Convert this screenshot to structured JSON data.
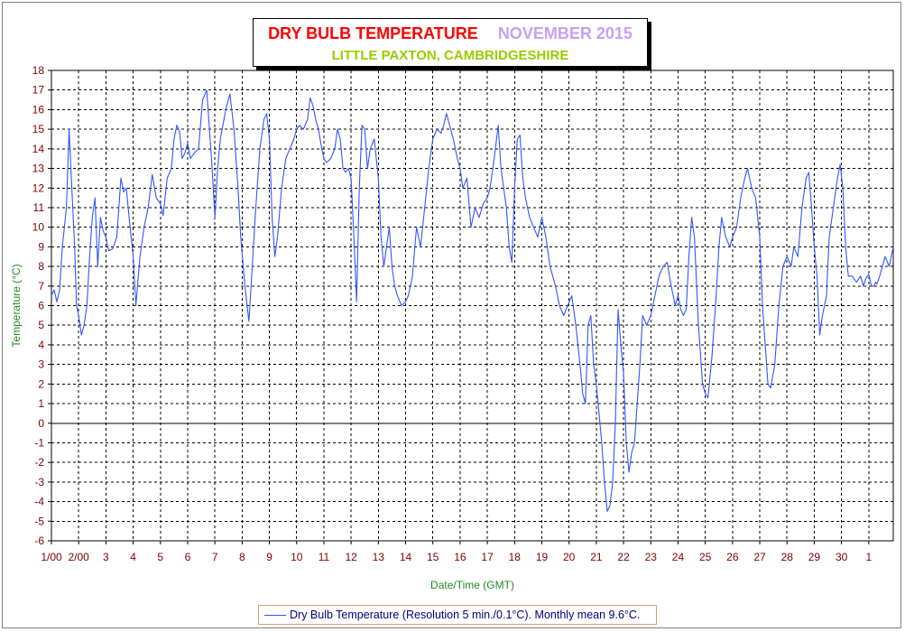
{
  "chart_data": {
    "type": "line",
    "title": "DRY BULB TEMPERATURE",
    "title_month": "NOVEMBER 2015",
    "subtitle": "LITTLE PAXTON, CAMBRIDGESHIRE",
    "xlabel": "Date/Time (GMT)",
    "ylabel": "Temperature (°C)",
    "ylim": [
      -6,
      18
    ],
    "xlim": [
      1,
      31.9
    ],
    "yticks": [
      "18",
      "17",
      "16",
      "15",
      "14",
      "13",
      "12",
      "11",
      "10",
      "9",
      "8",
      "7",
      "6",
      "5",
      "4",
      "3",
      "2",
      "1",
      "0",
      "-1",
      "-2",
      "-3",
      "-4",
      "-5",
      "-6"
    ],
    "xticks": [
      {
        "x": 1.0,
        "label": "1/00"
      },
      {
        "x": 2.0,
        "label": "2/00"
      },
      {
        "x": 3,
        "label": "3"
      },
      {
        "x": 4,
        "label": "4"
      },
      {
        "x": 5,
        "label": "5"
      },
      {
        "x": 6,
        "label": "6"
      },
      {
        "x": 7,
        "label": "7"
      },
      {
        "x": 8,
        "label": "8"
      },
      {
        "x": 9,
        "label": "9"
      },
      {
        "x": 10,
        "label": "10"
      },
      {
        "x": 11,
        "label": "11"
      },
      {
        "x": 12,
        "label": "12"
      },
      {
        "x": 13,
        "label": "13"
      },
      {
        "x": 14,
        "label": "14"
      },
      {
        "x": 15,
        "label": "15"
      },
      {
        "x": 16,
        "label": "16"
      },
      {
        "x": 17,
        "label": "17"
      },
      {
        "x": 18,
        "label": "18"
      },
      {
        "x": 19,
        "label": "19"
      },
      {
        "x": 20,
        "label": "20"
      },
      {
        "x": 21,
        "label": "21"
      },
      {
        "x": 22,
        "label": "22"
      },
      {
        "x": 23,
        "label": "23"
      },
      {
        "x": 24,
        "label": "24"
      },
      {
        "x": 25,
        "label": "25"
      },
      {
        "x": 26,
        "label": "26"
      },
      {
        "x": 27,
        "label": "27"
      },
      {
        "x": 28,
        "label": "28"
      },
      {
        "x": 29,
        "label": "29"
      },
      {
        "x": 30,
        "label": "30"
      },
      {
        "x": 31,
        "label": "1"
      }
    ],
    "grid": true,
    "legend_position": "bottom-center",
    "series": [
      {
        "name": "Dry Bulb Temperature (Resolution 5 min./0.1°C). Monthly mean 9.6°C.",
        "color": "#3355ff",
        "points": [
          [
            1.0,
            6.5
          ],
          [
            1.1,
            6.8
          ],
          [
            1.2,
            6.2
          ],
          [
            1.3,
            6.8
          ],
          [
            1.4,
            9.0
          ],
          [
            1.55,
            11.0
          ],
          [
            1.65,
            15.0
          ],
          [
            1.75,
            12.0
          ],
          [
            1.85,
            9.0
          ],
          [
            1.92,
            6.0
          ],
          [
            2.0,
            5.5
          ],
          [
            2.1,
            4.5
          ],
          [
            2.2,
            5.0
          ],
          [
            2.3,
            6.0
          ],
          [
            2.4,
            8.5
          ],
          [
            2.5,
            10.5
          ],
          [
            2.6,
            11.5
          ],
          [
            2.7,
            8.0
          ],
          [
            2.8,
            10.5
          ],
          [
            2.9,
            9.8
          ],
          [
            3.0,
            9.5
          ],
          [
            3.1,
            8.8
          ],
          [
            3.25,
            8.9
          ],
          [
            3.4,
            9.5
          ],
          [
            3.55,
            12.5
          ],
          [
            3.65,
            11.8
          ],
          [
            3.75,
            12.0
          ],
          [
            3.85,
            10.5
          ],
          [
            4.0,
            8.5
          ],
          [
            4.1,
            6.0
          ],
          [
            4.25,
            8.5
          ],
          [
            4.4,
            10.0
          ],
          [
            4.55,
            11.0
          ],
          [
            4.7,
            12.7
          ],
          [
            4.85,
            11.5
          ],
          [
            5.0,
            11.2
          ],
          [
            5.1,
            10.6
          ],
          [
            5.25,
            12.5
          ],
          [
            5.4,
            13.0
          ],
          [
            5.5,
            14.5
          ],
          [
            5.6,
            15.2
          ],
          [
            5.7,
            14.9
          ],
          [
            5.8,
            13.5
          ],
          [
            5.9,
            13.8
          ],
          [
            6.0,
            14.3
          ],
          [
            6.1,
            13.5
          ],
          [
            6.25,
            13.8
          ],
          [
            6.4,
            14.0
          ],
          [
            6.55,
            16.5
          ],
          [
            6.7,
            17.0
          ],
          [
            6.8,
            15.0
          ],
          [
            6.9,
            13.0
          ],
          [
            7.0,
            10.5
          ],
          [
            7.1,
            13.0
          ],
          [
            7.2,
            14.5
          ],
          [
            7.4,
            16.0
          ],
          [
            7.55,
            16.8
          ],
          [
            7.7,
            15.0
          ],
          [
            7.85,
            12.0
          ],
          [
            7.95,
            9.5
          ],
          [
            8.1,
            7.0
          ],
          [
            8.25,
            5.2
          ],
          [
            8.35,
            7.5
          ],
          [
            8.5,
            11.0
          ],
          [
            8.65,
            14.0
          ],
          [
            8.8,
            15.5
          ],
          [
            8.9,
            15.8
          ],
          [
            9.0,
            14.5
          ],
          [
            9.1,
            10.5
          ],
          [
            9.2,
            8.5
          ],
          [
            9.3,
            9.5
          ],
          [
            9.45,
            12.0
          ],
          [
            9.6,
            13.5
          ],
          [
            9.75,
            14.0
          ],
          [
            9.9,
            14.5
          ],
          [
            10.0,
            15.0
          ],
          [
            10.1,
            15.2
          ],
          [
            10.25,
            15.0
          ],
          [
            10.4,
            15.5
          ],
          [
            10.5,
            16.6
          ],
          [
            10.6,
            16.2
          ],
          [
            10.7,
            15.5
          ],
          [
            10.8,
            15.0
          ],
          [
            10.9,
            14.2
          ],
          [
            11.0,
            13.5
          ],
          [
            11.1,
            13.3
          ],
          [
            11.25,
            13.5
          ],
          [
            11.4,
            14.0
          ],
          [
            11.5,
            15.0
          ],
          [
            11.6,
            14.5
          ],
          [
            11.7,
            13.0
          ],
          [
            11.8,
            12.8
          ],
          [
            11.9,
            13.0
          ],
          [
            12.0,
            12.5
          ],
          [
            12.1,
            9.5
          ],
          [
            12.2,
            6.2
          ],
          [
            12.3,
            12.0
          ],
          [
            12.4,
            15.2
          ],
          [
            12.5,
            15.0
          ],
          [
            12.6,
            13.0
          ],
          [
            12.7,
            14.0
          ],
          [
            12.85,
            14.5
          ],
          [
            13.0,
            12.5
          ],
          [
            13.1,
            9.5
          ],
          [
            13.2,
            8.0
          ],
          [
            13.3,
            9.0
          ],
          [
            13.4,
            10.0
          ],
          [
            13.5,
            8.0
          ],
          [
            13.6,
            7.0
          ],
          [
            13.7,
            6.5
          ],
          [
            13.85,
            6.0
          ],
          [
            14.0,
            6.2
          ],
          [
            14.1,
            6.5
          ],
          [
            14.25,
            7.5
          ],
          [
            14.4,
            10.0
          ],
          [
            14.55,
            9.0
          ],
          [
            14.7,
            11.0
          ],
          [
            14.85,
            13.0
          ],
          [
            15.0,
            14.5
          ],
          [
            15.15,
            15.0
          ],
          [
            15.3,
            14.8
          ],
          [
            15.4,
            15.2
          ],
          [
            15.5,
            15.8
          ],
          [
            15.6,
            15.3
          ],
          [
            15.75,
            14.5
          ],
          [
            15.9,
            13.5
          ],
          [
            16.0,
            13.0
          ],
          [
            16.1,
            12.0
          ],
          [
            16.25,
            12.5
          ],
          [
            16.4,
            10.0
          ],
          [
            16.55,
            11.0
          ],
          [
            16.7,
            10.5
          ],
          [
            16.85,
            11.2
          ],
          [
            17.0,
            11.5
          ],
          [
            17.1,
            12.0
          ],
          [
            17.25,
            13.5
          ],
          [
            17.4,
            15.2
          ],
          [
            17.5,
            13.0
          ],
          [
            17.6,
            12.0
          ],
          [
            17.7,
            11.0
          ],
          [
            17.8,
            9.0
          ],
          [
            17.9,
            8.2
          ],
          [
            18.0,
            12.0
          ],
          [
            18.1,
            14.5
          ],
          [
            18.2,
            14.7
          ],
          [
            18.3,
            12.5
          ],
          [
            18.4,
            11.5
          ],
          [
            18.55,
            10.5
          ],
          [
            18.7,
            10.0
          ],
          [
            18.85,
            9.5
          ],
          [
            19.0,
            10.5
          ],
          [
            19.15,
            9.5
          ],
          [
            19.3,
            8.0
          ],
          [
            19.5,
            7.0
          ],
          [
            19.65,
            6.0
          ],
          [
            19.8,
            5.5
          ],
          [
            19.95,
            6.0
          ],
          [
            20.1,
            6.5
          ],
          [
            20.25,
            5.0
          ],
          [
            20.4,
            3.0
          ],
          [
            20.5,
            1.5
          ],
          [
            20.6,
            1.0
          ],
          [
            20.7,
            5.0
          ],
          [
            20.8,
            5.5
          ],
          [
            20.9,
            3.0
          ],
          [
            21.0,
            2.0
          ],
          [
            21.1,
            0.5
          ],
          [
            21.2,
            -1.0
          ],
          [
            21.3,
            -3.0
          ],
          [
            21.4,
            -4.5
          ],
          [
            21.5,
            -4.2
          ],
          [
            21.6,
            -3.0
          ],
          [
            21.7,
            0.0
          ],
          [
            21.75,
            3.0
          ],
          [
            21.8,
            5.8
          ],
          [
            21.9,
            4.0
          ],
          [
            22.0,
            2.5
          ],
          [
            22.1,
            -1.0
          ],
          [
            22.2,
            -2.5
          ],
          [
            22.3,
            -1.5
          ],
          [
            22.4,
            -1.0
          ],
          [
            22.5,
            1.0
          ],
          [
            22.6,
            3.0
          ],
          [
            22.7,
            5.5
          ],
          [
            22.85,
            5.0
          ],
          [
            23.0,
            5.5
          ],
          [
            23.15,
            6.5
          ],
          [
            23.3,
            7.5
          ],
          [
            23.45,
            8.0
          ],
          [
            23.6,
            8.2
          ],
          [
            23.75,
            7.0
          ],
          [
            23.9,
            6.0
          ],
          [
            24.0,
            6.5
          ],
          [
            24.1,
            5.8
          ],
          [
            24.2,
            5.5
          ],
          [
            24.3,
            5.8
          ],
          [
            24.4,
            8.5
          ],
          [
            24.5,
            10.5
          ],
          [
            24.6,
            9.5
          ],
          [
            24.75,
            5.0
          ],
          [
            24.9,
            2.0
          ],
          [
            25.0,
            1.5
          ],
          [
            25.1,
            1.3
          ],
          [
            25.25,
            3.5
          ],
          [
            25.4,
            6.5
          ],
          [
            25.5,
            9.0
          ],
          [
            25.6,
            10.5
          ],
          [
            25.75,
            9.5
          ],
          [
            25.9,
            9.0
          ],
          [
            26.0,
            9.5
          ],
          [
            26.15,
            10.0
          ],
          [
            26.3,
            11.5
          ],
          [
            26.45,
            12.5
          ],
          [
            26.55,
            13.0
          ],
          [
            26.7,
            12.0
          ],
          [
            26.85,
            11.5
          ],
          [
            27.0,
            9.5
          ],
          [
            27.1,
            6.0
          ],
          [
            27.2,
            4.0
          ],
          [
            27.3,
            2.0
          ],
          [
            27.4,
            1.8
          ],
          [
            27.55,
            3.0
          ],
          [
            27.7,
            6.0
          ],
          [
            27.85,
            8.0
          ],
          [
            28.0,
            8.5
          ],
          [
            28.15,
            8.0
          ],
          [
            28.25,
            9.0
          ],
          [
            28.4,
            8.5
          ],
          [
            28.55,
            11.0
          ],
          [
            28.7,
            12.5
          ],
          [
            28.8,
            12.8
          ],
          [
            28.9,
            11.0
          ],
          [
            29.0,
            9.0
          ],
          [
            29.1,
            7.5
          ],
          [
            29.2,
            4.5
          ],
          [
            29.3,
            5.5
          ],
          [
            29.45,
            6.5
          ],
          [
            29.55,
            9.5
          ],
          [
            29.7,
            11.0
          ],
          [
            29.85,
            12.5
          ],
          [
            29.95,
            13.2
          ],
          [
            30.05,
            12.0
          ],
          [
            30.15,
            9.0
          ],
          [
            30.25,
            7.5
          ],
          [
            30.4,
            7.5
          ],
          [
            30.55,
            7.2
          ],
          [
            30.7,
            7.5
          ],
          [
            30.8,
            7.0
          ],
          [
            30.9,
            7.4
          ],
          [
            31.0,
            7.6
          ],
          [
            31.1,
            7.0
          ],
          [
            31.2,
            7.0
          ],
          [
            31.25,
            7.2
          ],
          [
            31.3,
            7.1
          ],
          [
            31.4,
            7.5
          ],
          [
            31.5,
            8.0
          ],
          [
            31.6,
            8.5
          ],
          [
            31.75,
            8.0
          ],
          [
            31.9,
            9.0
          ]
        ]
      }
    ]
  },
  "ui": {
    "title": "DRY BULB TEMPERATURE",
    "title_month": "NOVEMBER 2015",
    "subtitle": "LITTLE PAXTON, CAMBRIDGESHIRE",
    "xlabel": "Date/Time (GMT)",
    "ylabel": "Temperature (°C)",
    "legend": "Dry Bulb Temperature (Resolution 5 min./0.1°C). Monthly mean 9.6°C."
  },
  "colors": {
    "title": "#ff0000",
    "month": "#c8a0f0",
    "subtitle": "#99cc00",
    "axis_labels": "#228b22",
    "tick_labels": "#800000",
    "series": "#3355ff"
  }
}
